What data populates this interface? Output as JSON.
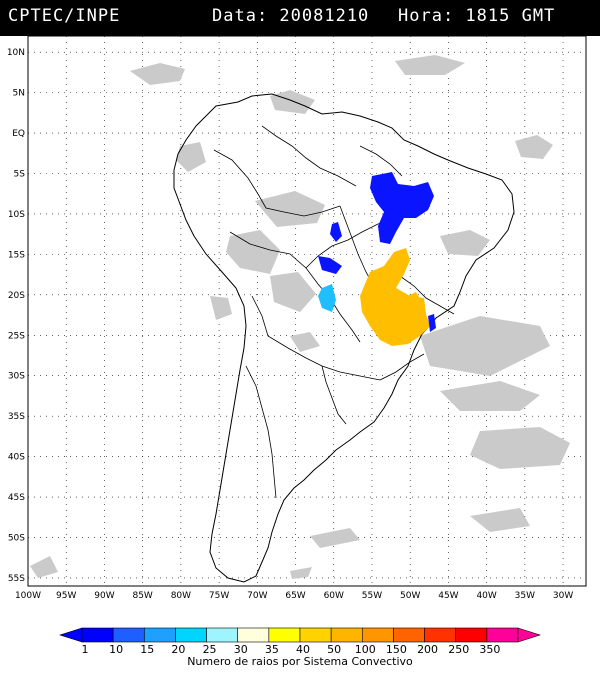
{
  "header": {
    "source": "CPTEC/INPE",
    "date_label": "Data: 20081210",
    "time_label": "Hora: 1815 GMT"
  },
  "axes": {
    "lat_labels": [
      "10N",
      "5N",
      "EQ",
      "5S",
      "10S",
      "15S",
      "20S",
      "25S",
      "30S",
      "35S",
      "40S",
      "45S",
      "50S",
      "55S"
    ],
    "lon_labels": [
      "100W",
      "95W",
      "90W",
      "85W",
      "80W",
      "75W",
      "70W",
      "65W",
      "60W",
      "55W",
      "50W",
      "45W",
      "40W",
      "35W",
      "30W"
    ],
    "lat_range": [
      -56,
      12
    ],
    "lon_range": [
      -100,
      -27
    ],
    "grid": "dotted"
  },
  "colorbar": {
    "tick_labels": [
      "1",
      "10",
      "15",
      "20",
      "25",
      "30",
      "35",
      "40",
      "50",
      "100",
      "150",
      "200",
      "250",
      "350"
    ],
    "caption": "Numero de raios por Sistema Convectivo",
    "colors": [
      "#0000ff",
      "#1e5fff",
      "#1fa0ff",
      "#00d4ff",
      "#9ef5ff",
      "#ffffdc",
      "#ffff00",
      "#ffd200",
      "#ffb400",
      "#ff9600",
      "#ff6400",
      "#ff3200",
      "#ff0000",
      "#ff0099"
    ]
  },
  "legend_colors": {
    "clouds": "#c8c8c8",
    "blue_systems": "#0a14ff",
    "cyan_systems": "#1fbfff",
    "orange_systems": "#ffbf00"
  }
}
